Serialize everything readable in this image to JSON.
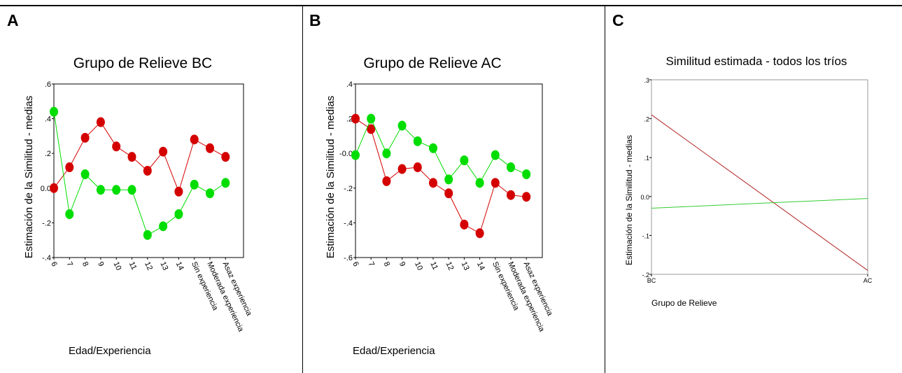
{
  "panels": [
    {
      "letter": "A"
    },
    {
      "letter": "B"
    },
    {
      "letter": "C"
    }
  ],
  "chart_data": [
    {
      "type": "line",
      "title": "Grupo de Relieve BC",
      "xlabel": "Edad/Experiencia",
      "ylabel": "Estimación de la Similitud - medias",
      "categories": [
        "6",
        "7",
        "8",
        "9",
        "10",
        "11",
        "12",
        "13",
        "14",
        "Sin experiencia",
        "Moderada experiencia",
        "Asaz experiencia"
      ],
      "yticks": [
        ".6",
        ".4",
        ".2",
        "0.0",
        "-.2",
        "-.4"
      ],
      "ylim": [
        -0.4,
        0.6
      ],
      "series": [
        {
          "color": "#d40000",
          "values": [
            0.0,
            0.12,
            0.29,
            0.38,
            0.24,
            0.18,
            0.1,
            0.21,
            -0.02,
            0.28,
            0.23,
            0.18
          ]
        },
        {
          "color": "#00dd00",
          "values": [
            0.44,
            -0.15,
            0.08,
            -0.01,
            -0.01,
            -0.01,
            -0.27,
            -0.22,
            -0.15,
            0.02,
            -0.03,
            0.03
          ]
        }
      ]
    },
    {
      "type": "line",
      "title": "Grupo de Relieve AC",
      "xlabel": "Edad/Experiencia",
      "ylabel": "Estimación de la Similitud - medias",
      "categories": [
        "6",
        "7",
        "8",
        "9",
        "10",
        "11",
        "12",
        "13",
        "14",
        "Sin experiencia",
        "Moderada experiencia",
        "Asaz experiencia"
      ],
      "yticks": [
        ".4",
        ".2",
        "-0.0",
        "-.2",
        "-.4",
        "-.6"
      ],
      "ylim": [
        -0.6,
        0.4
      ],
      "series": [
        {
          "color": "#d40000",
          "values": [
            0.2,
            0.14,
            -0.16,
            -0.09,
            -0.08,
            -0.17,
            -0.23,
            -0.41,
            -0.46,
            -0.17,
            -0.24,
            -0.25
          ]
        },
        {
          "color": "#00dd00",
          "values": [
            -0.01,
            0.2,
            0.0,
            0.16,
            0.07,
            0.03,
            -0.15,
            -0.04,
            -0.17,
            -0.01,
            -0.08,
            -0.12
          ]
        }
      ]
    },
    {
      "type": "line",
      "title": "Similitud estimada - todos los tríos",
      "xlabel": "Grupo de Relieve",
      "ylabel": "Estimación de la Similitud - medias",
      "categories": [
        "BC",
        "AC"
      ],
      "yticks": [
        ".3",
        ".2",
        ".1",
        "0.0",
        "-.1",
        "-.2"
      ],
      "ylim": [
        -0.2,
        0.3
      ],
      "series": [
        {
          "color": "#b22222",
          "values": [
            0.21,
            -0.19
          ]
        },
        {
          "color": "#33cc33",
          "values": [
            -0.03,
            -0.005
          ]
        }
      ]
    }
  ]
}
